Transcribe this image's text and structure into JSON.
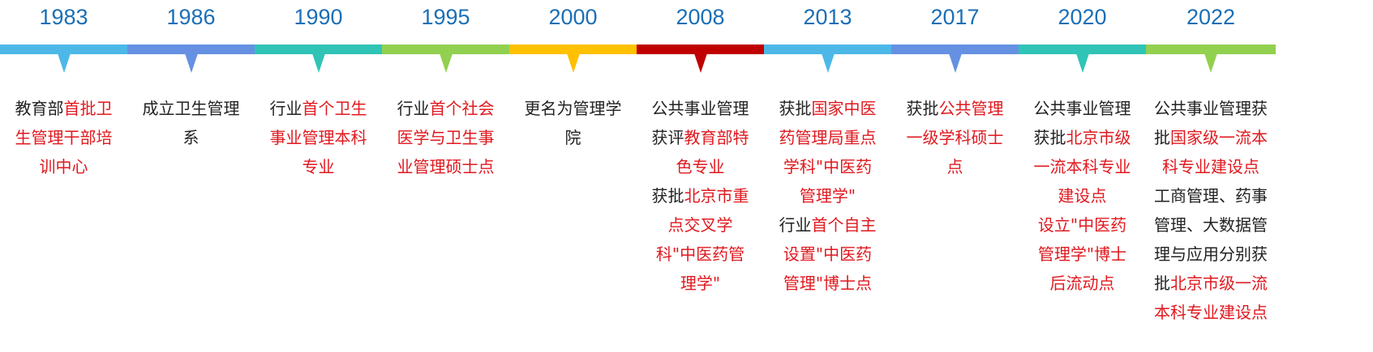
{
  "events": [
    {
      "year": "1983",
      "color": "#4db8e8",
      "paragraphs": [
        [
          {
            "text": "教育部",
            "hl": false
          },
          {
            "text": "首批卫生管理干部培训中心",
            "hl": true
          }
        ]
      ]
    },
    {
      "year": "1986",
      "color": "#6691e2",
      "paragraphs": [
        [
          {
            "text": "成立卫生管理系",
            "hl": false
          }
        ]
      ]
    },
    {
      "year": "1990",
      "color": "#2fc4b6",
      "paragraphs": [
        [
          {
            "text": "行业",
            "hl": false
          },
          {
            "text": "首个卫生事业管理本科专业",
            "hl": true
          }
        ]
      ]
    },
    {
      "year": "1995",
      "color": "#92d050",
      "paragraphs": [
        [
          {
            "text": "行业",
            "hl": false
          },
          {
            "text": "首个社会医学与卫生事业管理硕士点",
            "hl": true
          }
        ]
      ]
    },
    {
      "year": "2000",
      "color": "#ffc000",
      "paragraphs": [
        [
          {
            "text": "更名为管理学院",
            "hl": false
          }
        ]
      ]
    },
    {
      "year": "2008",
      "color": "#c00000",
      "paragraphs": [
        [
          {
            "text": "公共事业管理获评",
            "hl": false
          },
          {
            "text": "教育部特色专业",
            "hl": true
          }
        ],
        [
          {
            "text": "获批",
            "hl": false
          },
          {
            "text": "北京市重点交叉学科\"中医药管理学\"",
            "hl": true
          }
        ]
      ]
    },
    {
      "year": "2013",
      "color": "#4db8e8",
      "paragraphs": [
        [
          {
            "text": "获批",
            "hl": false
          },
          {
            "text": "国家中医药管理局重点学科\"中医药管理学\"",
            "hl": true
          }
        ],
        [
          {
            "text": "行业",
            "hl": false
          },
          {
            "text": "首个自主设置\"中医药管理\"博士点",
            "hl": true
          }
        ]
      ]
    },
    {
      "year": "2017",
      "color": "#6691e2",
      "paragraphs": [
        [
          {
            "text": "获批",
            "hl": false
          },
          {
            "text": "公共管理一级学科硕士点",
            "hl": true
          }
        ]
      ]
    },
    {
      "year": "2020",
      "color": "#2fc4b6",
      "paragraphs": [
        [
          {
            "text": "公共事业管理获批",
            "hl": false
          },
          {
            "text": "北京市级一流本科专业建设点",
            "hl": true
          }
        ],
        [
          {
            "text": "设立\"中医药管理学\"博士后流动点",
            "hl": true
          }
        ]
      ]
    },
    {
      "year": "2022",
      "color": "#92d050",
      "paragraphs": [
        [
          {
            "text": "公共事业管理获批",
            "hl": false
          },
          {
            "text": "国家级一流本科专业建设点",
            "hl": true
          }
        ],
        [
          {
            "text": "工商管理、药事管理、大数据管理与应用分别获批",
            "hl": false
          },
          {
            "text": "北京市级一流本科专业建设点",
            "hl": true
          }
        ]
      ]
    }
  ]
}
